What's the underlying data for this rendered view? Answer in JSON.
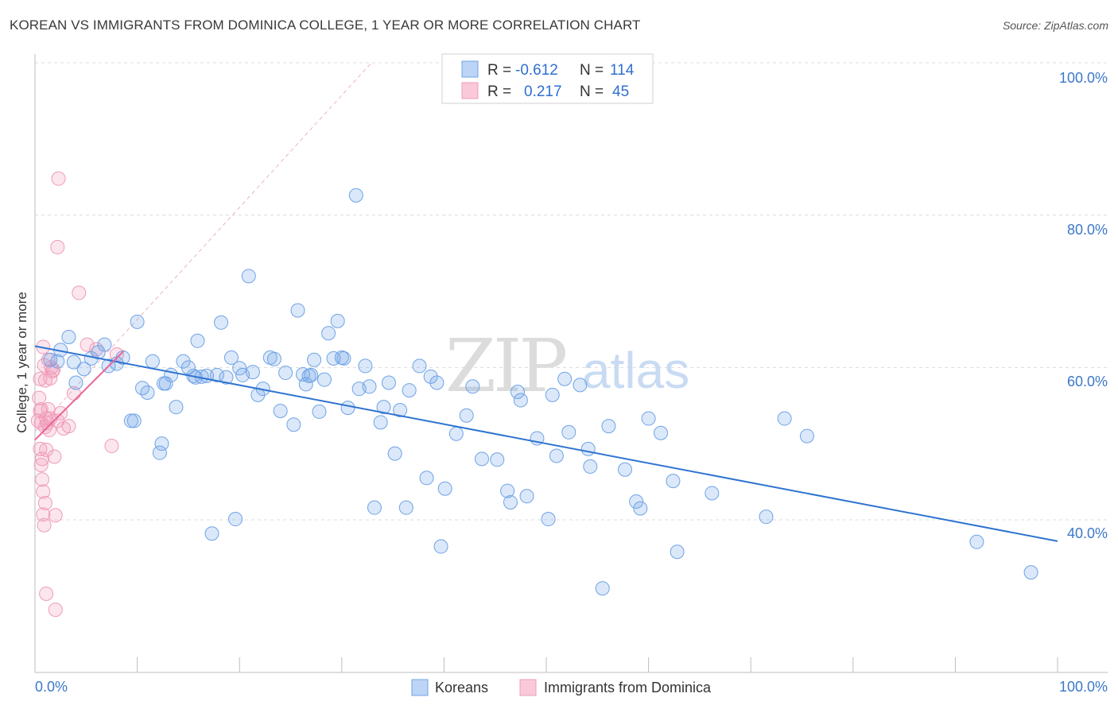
{
  "title": "KOREAN VS IMMIGRANTS FROM DOMINICA COLLEGE, 1 YEAR OR MORE CORRELATION CHART",
  "source": "Source: ZipAtlas.com",
  "watermark": {
    "zip": "ZIP",
    "atlas": "atlas"
  },
  "colors": {
    "korean": "#6fa3e6",
    "korean_line": "#2f74d0",
    "dominica": "#f09ab8",
    "dominica_line": "#e8669a",
    "axis_text": "#3b78c9"
  },
  "legend": {
    "rows": [
      {
        "r_label": "R =",
        "r_value": "-0.612",
        "n_label": "N =",
        "n_value": "114"
      },
      {
        "r_label": "R =",
        "r_value": "0.217",
        "n_label": "N =",
        "n_value": "45"
      }
    ]
  },
  "bottom_legend": {
    "korean": "Koreans",
    "dominica": "Immigrants from Dominica"
  },
  "chart_data": {
    "type": "scatter",
    "title": "KOREAN VS IMMIGRANTS FROM DOMINICA COLLEGE, 1 YEAR OR MORE CORRELATION CHART",
    "xlabel": "",
    "ylabel": "College, 1 year or more",
    "xlim": [
      0,
      100
    ],
    "ylim": [
      20,
      102
    ],
    "x_tick_labels": [
      "0.0%",
      "100.0%"
    ],
    "y_tick_labels": [
      "40.0%",
      "60.0%",
      "80.0%",
      "100.0%"
    ],
    "y_tick_values": [
      40,
      60,
      80,
      100
    ],
    "series": [
      {
        "name": "Koreans",
        "r": -0.612,
        "n": 114,
        "trend": {
          "x": [
            0,
            100
          ],
          "y": [
            62.8,
            37.2
          ]
        },
        "points": [
          [
            1.5,
            61
          ],
          [
            2.2,
            60.8
          ],
          [
            3.3,
            64
          ],
          [
            3.8,
            60.7
          ],
          [
            4,
            58
          ],
          [
            4.8,
            59.8
          ],
          [
            5.5,
            61.2
          ],
          [
            6.2,
            62
          ],
          [
            6.8,
            63
          ],
          [
            7.2,
            60.2
          ],
          [
            8,
            60.5
          ],
          [
            8.6,
            61.3
          ],
          [
            9.4,
            53
          ],
          [
            10,
            66
          ],
          [
            10.5,
            57.3
          ],
          [
            11,
            56.7
          ],
          [
            11.5,
            60.8
          ],
          [
            12.2,
            48.8
          ],
          [
            12.4,
            50
          ],
          [
            12.8,
            57.9
          ],
          [
            13.3,
            59
          ],
          [
            13.8,
            54.8
          ],
          [
            14.5,
            60.8
          ],
          [
            15,
            60
          ],
          [
            15.5,
            58.9
          ],
          [
            15.9,
            63.5
          ],
          [
            16.3,
            58.8
          ],
          [
            16.8,
            58.9
          ],
          [
            17.3,
            38.2
          ],
          [
            17.8,
            59
          ],
          [
            18.2,
            65.9
          ],
          [
            18.7,
            58.7
          ],
          [
            19.2,
            61.3
          ],
          [
            19.6,
            40.1
          ],
          [
            20,
            59.9
          ],
          [
            20.3,
            59
          ],
          [
            20.9,
            72
          ],
          [
            21.3,
            59.4
          ],
          [
            21.8,
            56.4
          ],
          [
            22.3,
            57.2
          ],
          [
            23,
            61.3
          ],
          [
            23.4,
            61.1
          ],
          [
            24,
            54.3
          ],
          [
            24.5,
            59.3
          ],
          [
            25.3,
            52.5
          ],
          [
            25.7,
            67.5
          ],
          [
            26.2,
            59.1
          ],
          [
            26.5,
            57.8
          ],
          [
            27,
            59
          ],
          [
            27.3,
            61
          ],
          [
            27.8,
            54.2
          ],
          [
            28.3,
            58.4
          ],
          [
            28.7,
            64.5
          ],
          [
            29.2,
            61.2
          ],
          [
            29.6,
            66.1
          ],
          [
            30.2,
            61.2
          ],
          [
            30.6,
            54.7
          ],
          [
            31.4,
            82.6
          ],
          [
            31.7,
            57.2
          ],
          [
            32.3,
            60.2
          ],
          [
            32.7,
            57.5
          ],
          [
            33.2,
            41.6
          ],
          [
            33.8,
            52.8
          ],
          [
            34.1,
            54.8
          ],
          [
            34.6,
            58
          ],
          [
            35.2,
            48.7
          ],
          [
            35.7,
            54.4
          ],
          [
            36.3,
            41.6
          ],
          [
            36.6,
            57
          ],
          [
            37.6,
            60.2
          ],
          [
            38.3,
            45.5
          ],
          [
            38.7,
            58.8
          ],
          [
            39.3,
            58
          ],
          [
            39.7,
            36.5
          ],
          [
            40.1,
            44.1
          ],
          [
            41.2,
            51.3
          ],
          [
            42.2,
            53.7
          ],
          [
            42.8,
            57.5
          ],
          [
            43.7,
            48
          ],
          [
            45.2,
            47.9
          ],
          [
            46.2,
            43.8
          ],
          [
            46.5,
            42.3
          ],
          [
            47.2,
            56.8
          ],
          [
            47.5,
            55.7
          ],
          [
            48.1,
            43.1
          ],
          [
            49.1,
            50.7
          ],
          [
            50.2,
            40.1
          ],
          [
            50.6,
            56.4
          ],
          [
            51,
            48.4
          ],
          [
            51.8,
            58.5
          ],
          [
            52.2,
            51.5
          ],
          [
            53.3,
            57.7
          ],
          [
            54.1,
            49.3
          ],
          [
            54.3,
            47
          ],
          [
            55.5,
            31
          ],
          [
            56.1,
            52.3
          ],
          [
            57.7,
            46.6
          ],
          [
            58.8,
            42.4
          ],
          [
            59.2,
            41.5
          ],
          [
            60,
            53.3
          ],
          [
            61.2,
            51.4
          ],
          [
            62.4,
            45.1
          ],
          [
            62.8,
            35.8
          ],
          [
            66.2,
            43.5
          ],
          [
            71.5,
            40.4
          ],
          [
            73.3,
            53.3
          ],
          [
            75.5,
            51
          ],
          [
            92.1,
            37.1
          ],
          [
            97.4,
            33.1
          ],
          [
            2.5,
            62.3
          ],
          [
            9.7,
            53
          ],
          [
            12.6,
            57.9
          ],
          [
            15.7,
            58.7
          ],
          [
            30,
            61.3
          ],
          [
            26.8,
            58.9
          ]
        ]
      },
      {
        "name": "Immigrants from Dominica",
        "r": 0.217,
        "n": 45,
        "trend": {
          "x": [
            0,
            8.7
          ],
          "y": [
            50.5,
            62.2
          ]
        },
        "points": [
          [
            0.4,
            56
          ],
          [
            0.5,
            54.3
          ],
          [
            0.6,
            52.7
          ],
          [
            0.5,
            49.3
          ],
          [
            0.6,
            47.2
          ],
          [
            0.7,
            45.3
          ],
          [
            0.8,
            43.7
          ],
          [
            0.7,
            48
          ],
          [
            0.8,
            40.7
          ],
          [
            0.9,
            39.3
          ],
          [
            1.0,
            42.2
          ],
          [
            1.0,
            52.2
          ],
          [
            1.1,
            53.3
          ],
          [
            1.2,
            52.7
          ],
          [
            1.3,
            54.5
          ],
          [
            1.4,
            51.8
          ],
          [
            1.5,
            53.3
          ],
          [
            1.6,
            60
          ],
          [
            1.8,
            59.7
          ],
          [
            1.9,
            48.3
          ],
          [
            2.0,
            40.6
          ],
          [
            2.2,
            53
          ],
          [
            2.5,
            54
          ],
          [
            2.8,
            52
          ],
          [
            3.3,
            52.3
          ],
          [
            3.8,
            56.6
          ],
          [
            4.3,
            69.8
          ],
          [
            5.1,
            63
          ],
          [
            6.0,
            62.4
          ],
          [
            7.5,
            49.7
          ],
          [
            8.0,
            61.7
          ],
          [
            2.2,
            75.8
          ],
          [
            2.3,
            84.8
          ],
          [
            1.1,
            30.3
          ],
          [
            2.0,
            28.2
          ],
          [
            0.6,
            54.5
          ],
          [
            1.0,
            58.3
          ],
          [
            1.5,
            58.6
          ],
          [
            0.9,
            60.3
          ],
          [
            1.3,
            61
          ],
          [
            0.3,
            53
          ],
          [
            1.1,
            49.2
          ],
          [
            0.5,
            58.5
          ],
          [
            1.7,
            59.5
          ],
          [
            0.8,
            62.7
          ]
        ]
      }
    ]
  }
}
